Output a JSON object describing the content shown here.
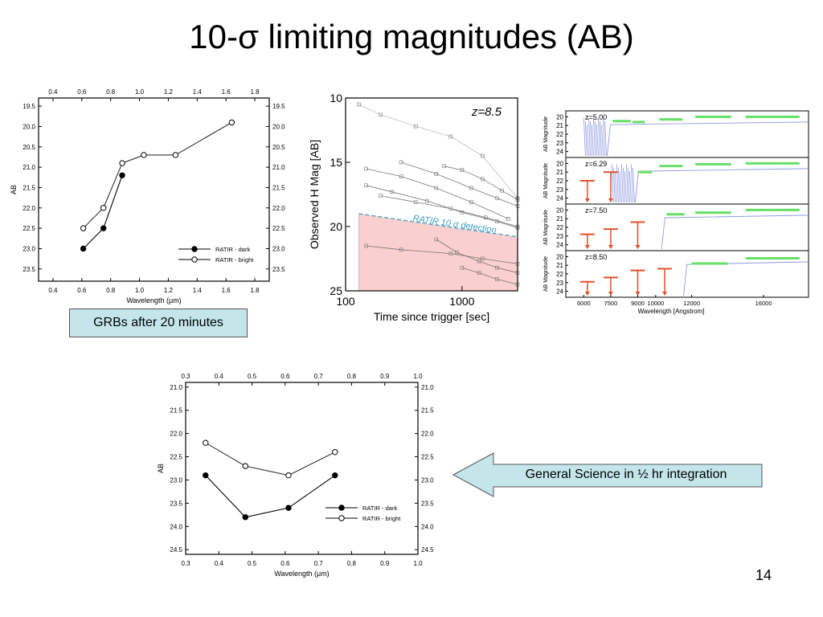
{
  "slide": {
    "title": "10-σ limiting magnitudes (AB)",
    "grb_note": "GRBs after 20 minutes",
    "arrow_note": "General Science in ½ hr integration",
    "page_number": "14"
  },
  "colors": {
    "note_fill": "#c4e6ea",
    "detection_fill": "#f9cfcf",
    "detection_line": "#3a9fc0",
    "spectrum_blue": "#8f9be0",
    "band_green": "#66e066",
    "limit_red": "#e0502a"
  },
  "chart_data": [
    {
      "type": "line",
      "panel": "top-left",
      "x_top_ticks": [
        "0.4",
        "0.6",
        "0.8",
        "1.0",
        "1.2",
        "1.4",
        "1.6",
        "1.8"
      ],
      "x_bottom_ticks": [
        "0.4",
        "0.6",
        "0.8",
        "1.0",
        "1.2",
        "1.4",
        "1.6",
        "1.8"
      ],
      "y_ticks": [
        "19.5",
        "20.0",
        "20.5",
        "21.0",
        "21.5",
        "22.0",
        "22.5",
        "23.0",
        "23.5"
      ],
      "xlim": [
        0.3,
        1.9
      ],
      "ylim": [
        19.3,
        23.8
      ],
      "y_inverted": true,
      "xlabel": "Wavelength (μm)",
      "ylabel": "AB",
      "legend_position": "bottom-right",
      "series": [
        {
          "name": "RATIR - dark",
          "marker": "filled",
          "x": [
            0.61,
            0.75,
            0.88
          ],
          "y": [
            23.0,
            22.5,
            21.2
          ]
        },
        {
          "name": "RATIR - bright",
          "marker": "open",
          "x": [
            0.61,
            0.75,
            0.88,
            1.03,
            1.25,
            1.64
          ],
          "y": [
            22.5,
            22.0,
            20.9,
            20.7,
            20.7,
            19.9
          ]
        }
      ]
    },
    {
      "type": "line",
      "panel": "top-middle",
      "annotation": "z=8.5",
      "detection_label": "RATIR 10 σ detection",
      "x_ticks": [
        "100",
        "1000"
      ],
      "y_ticks": [
        "10",
        "15",
        "20",
        "25"
      ],
      "xlim": [
        100,
        3000
      ],
      "x_scale": "log",
      "ylim": [
        10,
        25
      ],
      "y_inverted": true,
      "xlabel": "Time since trigger [sec]",
      "ylabel": "Observed H Mag  [AB]",
      "detection_limit": {
        "x": [
          130,
          3000
        ],
        "y": [
          19.0,
          20.8
        ]
      },
      "light_curves": [
        {
          "x": [
            130,
            200,
            400,
            800,
            1500,
            3000
          ],
          "y": [
            10.5,
            11.3,
            12.2,
            13.0,
            14.5,
            17.8
          ]
        },
        {
          "x": [
            150,
            300,
            600,
            1200,
            2500
          ],
          "y": [
            15.5,
            16.1,
            17.0,
            18.1,
            19.4
          ]
        },
        {
          "x": [
            150,
            250,
            500,
            1000,
            2000,
            3000
          ],
          "y": [
            16.8,
            17.3,
            18.0,
            18.9,
            19.6,
            20.1
          ]
        },
        {
          "x": [
            200,
            400,
            800,
            1600,
            3000
          ],
          "y": [
            17.6,
            18.1,
            18.6,
            19.3,
            20.0
          ]
        },
        {
          "x": [
            300,
            600,
            1200,
            2000,
            3000
          ],
          "y": [
            15.0,
            15.9,
            17.0,
            17.8,
            18.4
          ]
        },
        {
          "x": [
            700,
            1000,
            1500,
            2200,
            3000
          ],
          "y": [
            15.3,
            15.6,
            16.3,
            17.2,
            17.9
          ]
        },
        {
          "x": [
            150,
            300,
            800,
            1500,
            3000
          ],
          "y": [
            21.5,
            21.8,
            22.1,
            22.5,
            22.9
          ]
        },
        {
          "x": [
            600,
            900,
            1400,
            2000,
            3000
          ],
          "y": [
            21.0,
            22.0,
            22.7,
            23.2,
            23.6
          ]
        },
        {
          "x": [
            1000,
            1400,
            2000,
            3000
          ],
          "y": [
            23.2,
            23.6,
            24.1,
            24.5
          ]
        }
      ]
    },
    {
      "type": "line",
      "panel": "top-right",
      "x_ticks": [
        "6000",
        "7500",
        "9000",
        "10000",
        "12000",
        "16000"
      ],
      "xlim": [
        5000,
        18500
      ],
      "xlabel": "Wavelength [Angstrom]",
      "y_ticks": [
        "20",
        "21",
        "22",
        "23",
        "24"
      ],
      "ylim": [
        19.5,
        24.5
      ],
      "y_inverted": true,
      "panels": [
        {
          "label": "z=5.00",
          "ylabel": "AB Magnitude",
          "break": 7300,
          "limits": [],
          "bands": [
            {
              "x": [
                7600,
                8600
              ],
              "y": 20.5
            },
            {
              "x": [
                8700,
                9400
              ],
              "y": 20.6
            },
            {
              "x": [
                10200,
                11500
              ],
              "y": 20.3
            },
            {
              "x": [
                12200,
                14200
              ],
              "y": 20.0
            },
            {
              "x": [
                15000,
                18000
              ],
              "y": 20.0
            }
          ]
        },
        {
          "label": "z=6.29",
          "ylabel": "AB Magnitude",
          "break": 8860,
          "limits": [
            {
              "x": 6200,
              "y": 22.0
            },
            {
              "x": 7500,
              "y": 21.0
            }
          ],
          "bands": [
            {
              "x": [
                9000,
                9800
              ],
              "y": 21.0
            },
            {
              "x": [
                10200,
                11500
              ],
              "y": 20.3
            },
            {
              "x": [
                12200,
                14200
              ],
              "y": 20.1
            },
            {
              "x": [
                15000,
                18000
              ],
              "y": 20.0
            }
          ]
        },
        {
          "label": "z=7.50",
          "ylabel": "AB Magnitude",
          "break": 10330,
          "limits": [
            {
              "x": 6200,
              "y": 22.8
            },
            {
              "x": 7500,
              "y": 22.2
            },
            {
              "x": 9000,
              "y": 21.4
            }
          ],
          "bands": [
            {
              "x": [
                10600,
                11600
              ],
              "y": 20.5
            },
            {
              "x": [
                12200,
                14200
              ],
              "y": 20.3
            },
            {
              "x": [
                15000,
                18000
              ],
              "y": 20.0
            }
          ]
        },
        {
          "label": "z=8.50",
          "ylabel": "AB Magnitude",
          "break": 11550,
          "limits": [
            {
              "x": 6200,
              "y": 22.9
            },
            {
              "x": 7500,
              "y": 22.4
            },
            {
              "x": 9000,
              "y": 21.6
            },
            {
              "x": 10500,
              "y": 21.4
            }
          ],
          "bands": [
            {
              "x": [
                12000,
                14000
              ],
              "y": 20.8
            },
            {
              "x": [
                15000,
                18000
              ],
              "y": 20.2
            }
          ]
        }
      ]
    },
    {
      "type": "line",
      "panel": "bottom",
      "x_top_ticks": [
        "0.3",
        "0.4",
        "0.5",
        "0.6",
        "0.7",
        "0.8",
        "0.9",
        "1.0"
      ],
      "x_bottom_ticks": [
        "0.3",
        "0.4",
        "0.5",
        "0.6",
        "0.7",
        "0.8",
        "0.9",
        "1.0"
      ],
      "y_ticks": [
        "21.0",
        "21.5",
        "22.0",
        "22.5",
        "23.0",
        "23.5",
        "24.0",
        "24.5"
      ],
      "xlim": [
        0.3,
        1.0
      ],
      "ylim": [
        20.9,
        24.6
      ],
      "y_inverted": true,
      "xlabel": "Wavelength (μm)",
      "ylabel": "AB",
      "legend_position": "bottom-right",
      "series": [
        {
          "name": "RATIR - dark",
          "marker": "filled",
          "x": [
            0.36,
            0.48,
            0.61,
            0.75
          ],
          "y": [
            22.9,
            23.8,
            23.6,
            22.9
          ]
        },
        {
          "name": "RATIR - bright",
          "marker": "open",
          "x": [
            0.36,
            0.48,
            0.61,
            0.75
          ],
          "y": [
            22.2,
            22.7,
            22.9,
            22.4
          ]
        }
      ]
    }
  ]
}
